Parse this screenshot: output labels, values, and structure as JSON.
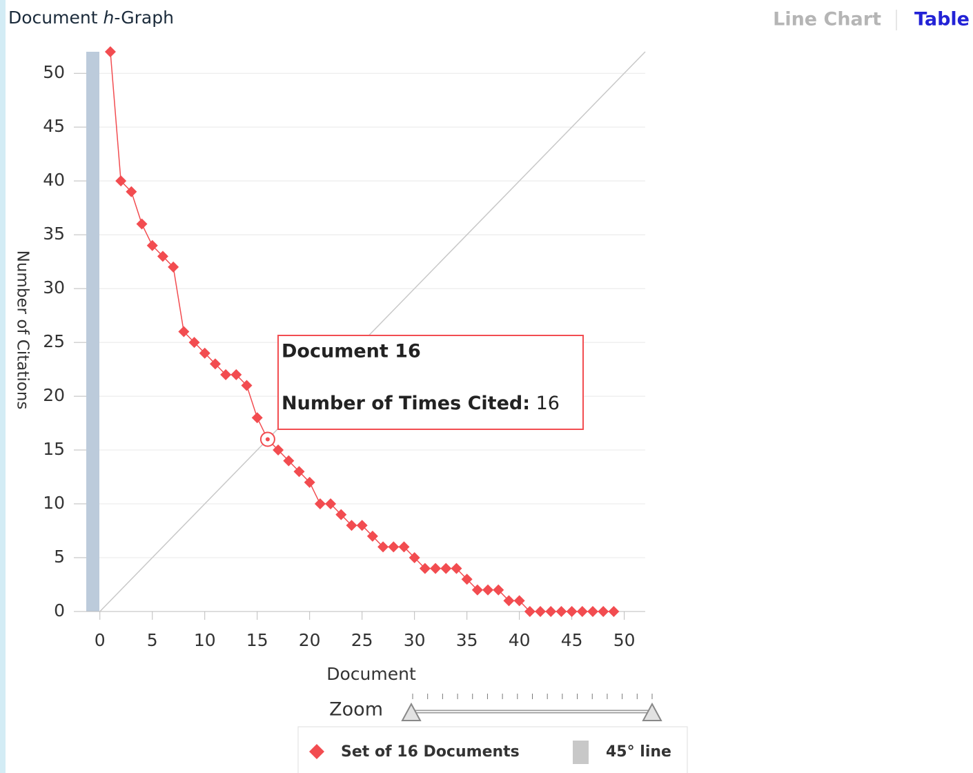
{
  "chart_data": {
    "type": "line",
    "title_parts": [
      "Document ",
      "h",
      "-Graph"
    ],
    "tabs": [
      "Line Chart",
      "Table"
    ],
    "x_label": "Document",
    "y_label": "Number of Citations",
    "zoom_label": "Zoom",
    "x": [
      1,
      2,
      3,
      4,
      5,
      6,
      7,
      8,
      9,
      10,
      11,
      12,
      13,
      14,
      15,
      16,
      17,
      18,
      19,
      20,
      21,
      22,
      23,
      24,
      25,
      26,
      27,
      28,
      29,
      30,
      31,
      32,
      33,
      34,
      35,
      36,
      37,
      38,
      39,
      40,
      41,
      42,
      43,
      44,
      45,
      46,
      47,
      48,
      49
    ],
    "series": [
      {
        "name": "Set of 16 Documents",
        "color": "#f24c50",
        "values": [
          52,
          40,
          39,
          36,
          34,
          33,
          32,
          26,
          25,
          24,
          23,
          22,
          22,
          21,
          18,
          16,
          15,
          14,
          13,
          12,
          10,
          10,
          9,
          8,
          8,
          7,
          6,
          6,
          6,
          5,
          4,
          4,
          4,
          4,
          3,
          2,
          2,
          2,
          1,
          1,
          0,
          0,
          0,
          0,
          0,
          0,
          0,
          0,
          0
        ]
      }
    ],
    "reference_line": {
      "name": "45° line",
      "color": "#c8c8c8"
    },
    "xlim": [
      -1.3,
      52
    ],
    "ylim": [
      0,
      52
    ],
    "xticks": [
      0,
      5,
      10,
      15,
      20,
      25,
      30,
      35,
      40,
      45,
      50
    ],
    "yticks": [
      0,
      5,
      10,
      15,
      20,
      25,
      30,
      35,
      40,
      45,
      50
    ],
    "grid": true,
    "tooltip": {
      "title": "Document 16",
      "label": "Number of Times Cited:",
      "value": 16
    }
  }
}
